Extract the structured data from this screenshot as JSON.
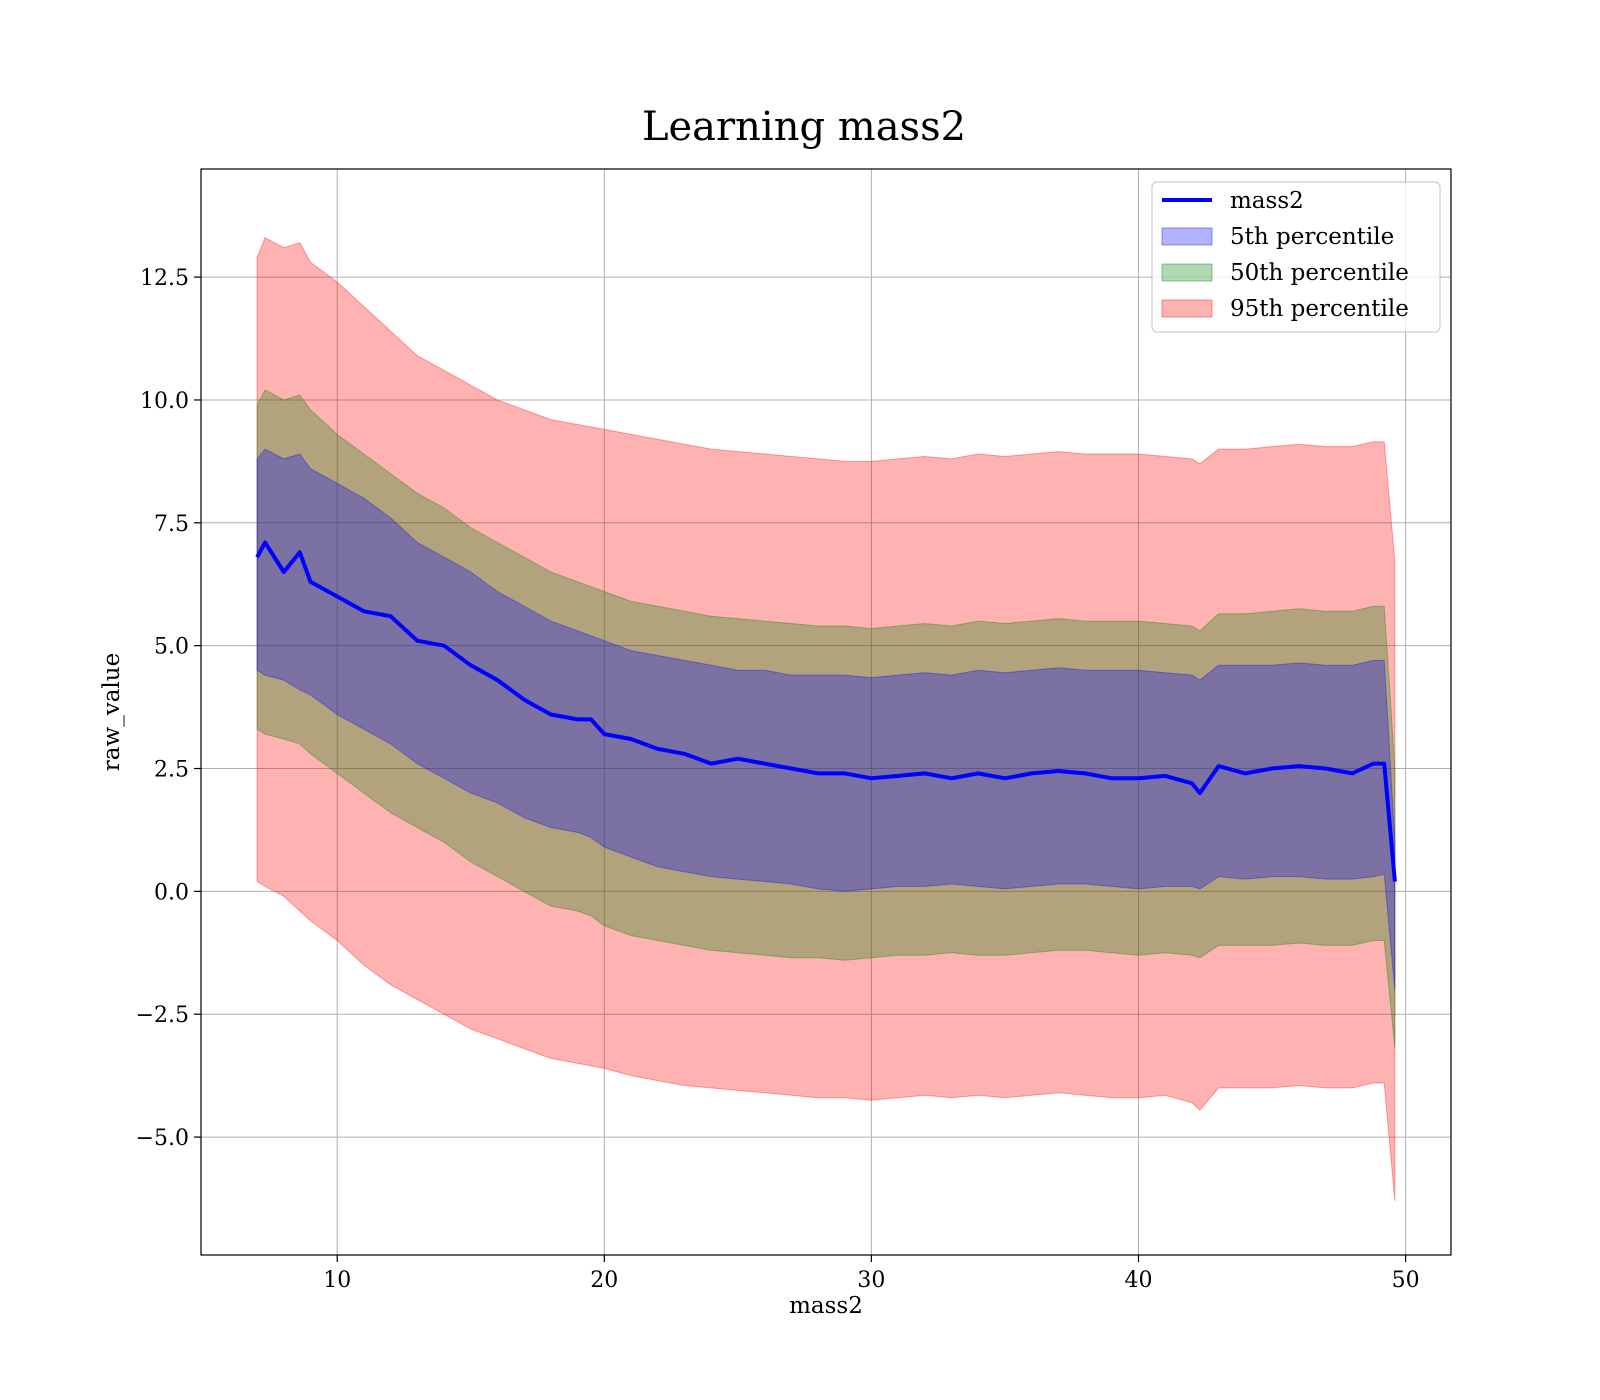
{
  "chart_data": {
    "type": "area",
    "title": "Learning mass2",
    "xlabel": "mass2",
    "ylabel": "raw_value",
    "xlim": [
      4.9,
      51.7
    ],
    "ylim": [
      -7.4,
      14.7
    ],
    "xticks": [
      10,
      20,
      30,
      40,
      50
    ],
    "xtick_labels": [
      "10",
      "20",
      "30",
      "40",
      "50"
    ],
    "yticks": [
      -5.0,
      -2.5,
      0.0,
      2.5,
      5.0,
      7.5,
      10.0,
      12.5
    ],
    "ytick_labels": [
      "−5.0",
      "−2.5",
      "0.0",
      "2.5",
      "5.0",
      "7.5",
      "10.0",
      "12.5"
    ],
    "grid": true,
    "legend_position": "upper right",
    "x": [
      7.0,
      7.3,
      8.0,
      8.6,
      9.0,
      10.0,
      11.0,
      12.0,
      13.0,
      14.0,
      15.0,
      16.0,
      17.0,
      18.0,
      19.0,
      19.5,
      20.0,
      21.0,
      22.0,
      23.0,
      24.0,
      25.0,
      26.0,
      27.0,
      28.0,
      29.0,
      30.0,
      31.0,
      32.0,
      33.0,
      34.0,
      35.0,
      36.0,
      37.0,
      38.0,
      39.0,
      40.0,
      41.0,
      42.0,
      42.3,
      43.0,
      44.0,
      45.0,
      46.0,
      47.0,
      48.0,
      48.8,
      49.2,
      49.6
    ],
    "series": [
      {
        "name": "mass2",
        "kind": "line",
        "color": "#0000ff",
        "values": [
          6.8,
          7.1,
          6.5,
          6.9,
          6.3,
          6.0,
          5.7,
          5.6,
          5.1,
          5.0,
          4.6,
          4.3,
          3.9,
          3.6,
          3.5,
          3.5,
          3.2,
          3.1,
          2.9,
          2.8,
          2.6,
          2.7,
          2.6,
          2.5,
          2.4,
          2.4,
          2.3,
          2.35,
          2.4,
          2.3,
          2.4,
          2.3,
          2.4,
          2.45,
          2.4,
          2.3,
          2.3,
          2.35,
          2.2,
          2.0,
          2.55,
          2.4,
          2.5,
          2.55,
          2.5,
          2.4,
          2.6,
          2.6,
          0.2
        ]
      },
      {
        "name": "5th percentile",
        "kind": "band",
        "color": "#0000ff",
        "lower": [
          4.5,
          4.4,
          4.3,
          4.1,
          4.0,
          3.6,
          3.3,
          3.0,
          2.6,
          2.3,
          2.0,
          1.8,
          1.5,
          1.3,
          1.2,
          1.1,
          0.9,
          0.7,
          0.5,
          0.4,
          0.3,
          0.25,
          0.2,
          0.15,
          0.05,
          0.0,
          0.05,
          0.1,
          0.1,
          0.15,
          0.1,
          0.05,
          0.1,
          0.15,
          0.15,
          0.1,
          0.05,
          0.1,
          0.1,
          0.05,
          0.3,
          0.25,
          0.3,
          0.3,
          0.25,
          0.25,
          0.3,
          0.35,
          -2.0
        ],
        "upper": [
          8.8,
          9.0,
          8.8,
          8.9,
          8.6,
          8.3,
          8.0,
          7.6,
          7.1,
          6.8,
          6.5,
          6.1,
          5.8,
          5.5,
          5.3,
          5.2,
          5.1,
          4.9,
          4.8,
          4.7,
          4.6,
          4.5,
          4.5,
          4.4,
          4.4,
          4.4,
          4.35,
          4.4,
          4.45,
          4.4,
          4.5,
          4.45,
          4.5,
          4.55,
          4.5,
          4.5,
          4.5,
          4.45,
          4.4,
          4.3,
          4.6,
          4.6,
          4.6,
          4.65,
          4.6,
          4.6,
          4.7,
          4.7,
          1.0
        ]
      },
      {
        "name": "50th percentile",
        "kind": "band",
        "color": "#008000",
        "lower": [
          3.3,
          3.2,
          3.1,
          3.0,
          2.8,
          2.4,
          2.0,
          1.6,
          1.3,
          1.0,
          0.6,
          0.3,
          0.0,
          -0.3,
          -0.4,
          -0.5,
          -0.7,
          -0.9,
          -1.0,
          -1.1,
          -1.2,
          -1.25,
          -1.3,
          -1.35,
          -1.35,
          -1.4,
          -1.35,
          -1.3,
          -1.3,
          -1.25,
          -1.3,
          -1.3,
          -1.25,
          -1.2,
          -1.2,
          -1.25,
          -1.3,
          -1.25,
          -1.3,
          -1.35,
          -1.1,
          -1.1,
          -1.1,
          -1.05,
          -1.1,
          -1.1,
          -1.0,
          -1.0,
          -3.2
        ],
        "upper": [
          9.9,
          10.2,
          10.0,
          10.1,
          9.8,
          9.3,
          8.9,
          8.5,
          8.1,
          7.8,
          7.4,
          7.1,
          6.8,
          6.5,
          6.3,
          6.2,
          6.1,
          5.9,
          5.8,
          5.7,
          5.6,
          5.55,
          5.5,
          5.45,
          5.4,
          5.4,
          5.35,
          5.4,
          5.45,
          5.4,
          5.5,
          5.45,
          5.5,
          5.55,
          5.5,
          5.5,
          5.5,
          5.45,
          5.4,
          5.3,
          5.65,
          5.65,
          5.7,
          5.75,
          5.7,
          5.7,
          5.8,
          5.8,
          2.5
        ]
      },
      {
        "name": "95th percentile",
        "kind": "band",
        "color": "#ff0000",
        "lower": [
          0.2,
          0.1,
          -0.1,
          -0.4,
          -0.6,
          -1.0,
          -1.5,
          -1.9,
          -2.2,
          -2.5,
          -2.8,
          -3.0,
          -3.2,
          -3.4,
          -3.5,
          -3.55,
          -3.6,
          -3.75,
          -3.85,
          -3.95,
          -4.0,
          -4.05,
          -4.1,
          -4.15,
          -4.2,
          -4.2,
          -4.25,
          -4.2,
          -4.15,
          -4.2,
          -4.15,
          -4.2,
          -4.15,
          -4.1,
          -4.15,
          -4.2,
          -4.2,
          -4.15,
          -4.3,
          -4.45,
          -4.0,
          -4.0,
          -4.0,
          -3.95,
          -4.0,
          -4.0,
          -3.9,
          -3.9,
          -6.3
        ],
        "upper": [
          12.9,
          13.3,
          13.1,
          13.2,
          12.8,
          12.4,
          11.9,
          11.4,
          10.9,
          10.6,
          10.3,
          10.0,
          9.8,
          9.6,
          9.5,
          9.45,
          9.4,
          9.3,
          9.2,
          9.1,
          9.0,
          8.95,
          8.9,
          8.85,
          8.8,
          8.75,
          8.75,
          8.8,
          8.85,
          8.8,
          8.9,
          8.85,
          8.9,
          8.95,
          8.9,
          8.9,
          8.9,
          8.85,
          8.8,
          8.7,
          9.0,
          9.0,
          9.05,
          9.1,
          9.05,
          9.05,
          9.15,
          9.15,
          6.7
        ]
      }
    ]
  }
}
